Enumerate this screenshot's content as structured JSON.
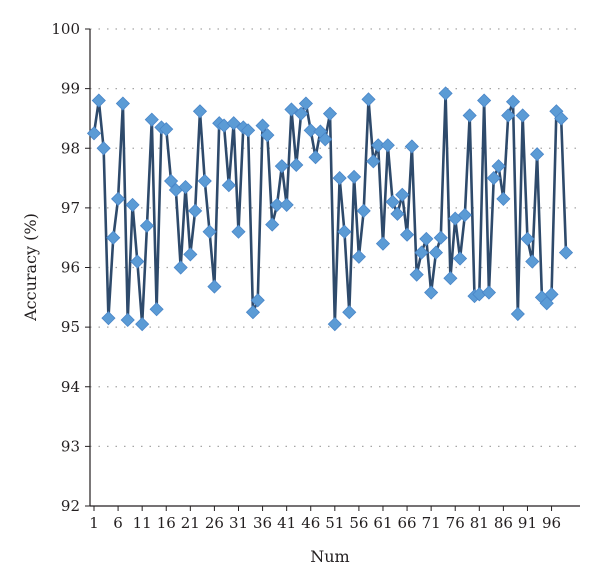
{
  "chart_data": {
    "type": "line",
    "xlabel": "Num",
    "ylabel": "Accuracy (%)",
    "ylim": [
      92,
      100
    ],
    "xlim": [
      1,
      99
    ],
    "grid": "horizontal-dotted",
    "yticks": [
      "92",
      "93",
      "94",
      "95",
      "96",
      "97",
      "98",
      "99",
      "100"
    ],
    "xticks": [
      "1",
      "6",
      "11",
      "16",
      "21",
      "26",
      "31",
      "36",
      "41",
      "46",
      "51",
      "56",
      "61",
      "66",
      "71",
      "76",
      "81",
      "86",
      "91",
      "96"
    ],
    "series": [
      {
        "color": "#5b9bd5",
        "line_color": "#2e4a6b",
        "marker": "diamond",
        "x": [
          1,
          2,
          3,
          4,
          5,
          6,
          7,
          8,
          9,
          10,
          11,
          12,
          13,
          14,
          15,
          16,
          17,
          18,
          19,
          20,
          21,
          22,
          23,
          24,
          25,
          26,
          27,
          28,
          29,
          30,
          31,
          32,
          33,
          34,
          35,
          36,
          37,
          38,
          39,
          40,
          41,
          42,
          43,
          44,
          45,
          46,
          47,
          48,
          49,
          50,
          51,
          52,
          53,
          54,
          55,
          56,
          57,
          58,
          59,
          60,
          61,
          62,
          63,
          64,
          65,
          66,
          67,
          68,
          69,
          70,
          71,
          72,
          73,
          74,
          75,
          76,
          77,
          78,
          79,
          80,
          81,
          82,
          83,
          84,
          85,
          86,
          87,
          88,
          89,
          90,
          91,
          92,
          93,
          94,
          95,
          96,
          97,
          98,
          99
        ],
        "values": [
          98.25,
          98.8,
          98.0,
          95.15,
          96.5,
          97.15,
          98.75,
          95.12,
          97.05,
          96.1,
          95.05,
          96.7,
          98.48,
          95.3,
          98.35,
          98.32,
          97.45,
          97.3,
          96.0,
          97.35,
          96.22,
          96.95,
          98.62,
          97.45,
          96.6,
          95.68,
          98.42,
          98.38,
          97.38,
          98.42,
          96.6,
          98.35,
          98.3,
          95.25,
          95.45,
          98.38,
          98.22,
          96.72,
          97.05,
          97.7,
          97.05,
          98.65,
          97.72,
          98.58,
          98.75,
          98.3,
          97.85,
          98.28,
          98.15,
          98.58,
          95.05,
          97.5,
          96.6,
          95.25,
          97.52,
          96.18,
          96.95,
          98.82,
          97.78,
          98.05,
          96.4,
          98.05,
          97.1,
          96.9,
          97.22,
          96.55,
          98.03,
          95.88,
          96.25,
          96.48,
          95.58,
          96.25,
          96.5,
          98.92,
          95.82,
          96.82,
          96.15,
          96.88,
          98.55,
          95.52,
          95.55,
          98.8,
          95.58,
          97.5,
          97.7,
          97.15,
          98.55,
          98.78,
          95.22,
          98.55,
          96.48,
          96.1,
          97.9,
          95.5,
          95.4,
          95.55,
          98.62,
          98.5,
          96.25
        ]
      }
    ]
  }
}
